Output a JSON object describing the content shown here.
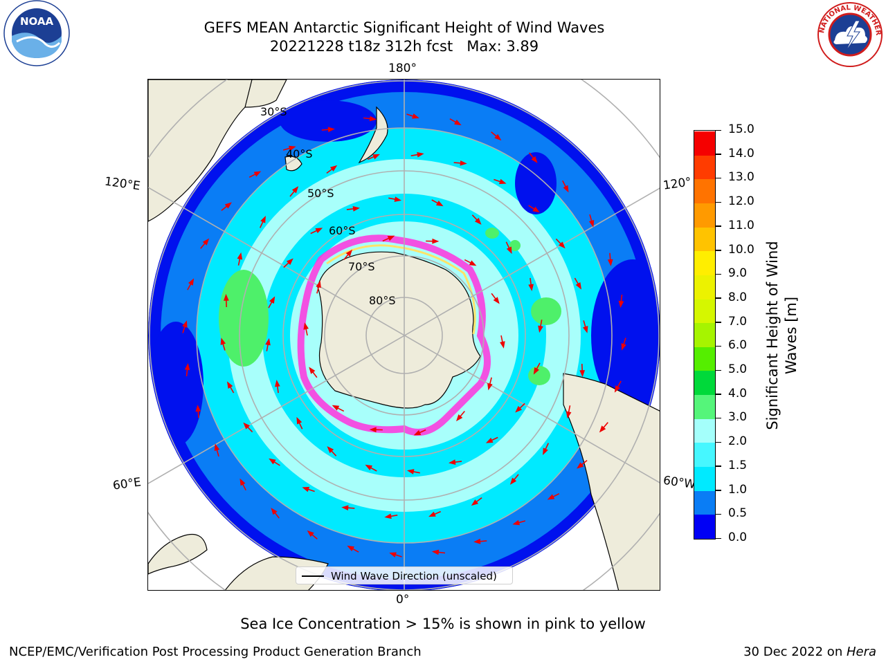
{
  "header": {
    "title_line1": "GEFS MEAN Antarctic Significant Height of Wind Waves",
    "title_line2": "20221228 t18z 312h fcst   Max: 3.89",
    "noaa_logo_text": "NOAA",
    "nws_logo_text": "NATIONAL WEATHER SERVICE"
  },
  "map": {
    "longitude_labels": {
      "top": "180°",
      "bottom": "0°",
      "upper_left": "120°E",
      "lower_left": "60°E",
      "upper_right": "120°",
      "lower_right": "60°W"
    },
    "latitude_labels": [
      "30°S",
      "40°S",
      "50°S",
      "60°S",
      "70°S",
      "80°S"
    ],
    "legend_label": "Wind Wave Direction (unscaled)",
    "colors": {
      "ocean_dark_blue": "#0011ee",
      "ocean_blue": "#0a7df5",
      "ocean_cyan": "#00eaff",
      "ocean_light_cyan": "#a8fffb",
      "ocean_green": "#4ef06a",
      "land": "#eeecdb",
      "sea_ice_pink": "#ff33dd",
      "sea_ice_yellow": "#ffe26a",
      "arrow": "#ee0000",
      "grid": "#b0b0b0"
    }
  },
  "colorbar": {
    "label": "Significant Height of Wind\nWaves [m]",
    "ticks": [
      "0.0",
      "0.5",
      "1.0",
      "1.5",
      "2.0",
      "3.0",
      "4.0",
      "5.0",
      "6.0",
      "7.0",
      "8.0",
      "9.0",
      "10.0",
      "11.0",
      "12.0",
      "13.0",
      "14.0",
      "15.0"
    ],
    "colors": [
      "#0000f5",
      "#0a7df5",
      "#00eaff",
      "#46f7ff",
      "#a4fffb",
      "#55f57a",
      "#00d93a",
      "#55ee00",
      "#a6f400",
      "#d5f700",
      "#ecf200",
      "#ffee00",
      "#ffc300",
      "#ff9a00",
      "#ff7300",
      "#ff3c00",
      "#f50000"
    ]
  },
  "caption": "Sea Ice Concentration > 15% is shown in pink to yellow",
  "footer": {
    "left": "NCEP/EMC/Verification Post Processing Product Generation Branch",
    "right_date": "30 Dec 2022 on ",
    "right_machine": "Hera"
  }
}
